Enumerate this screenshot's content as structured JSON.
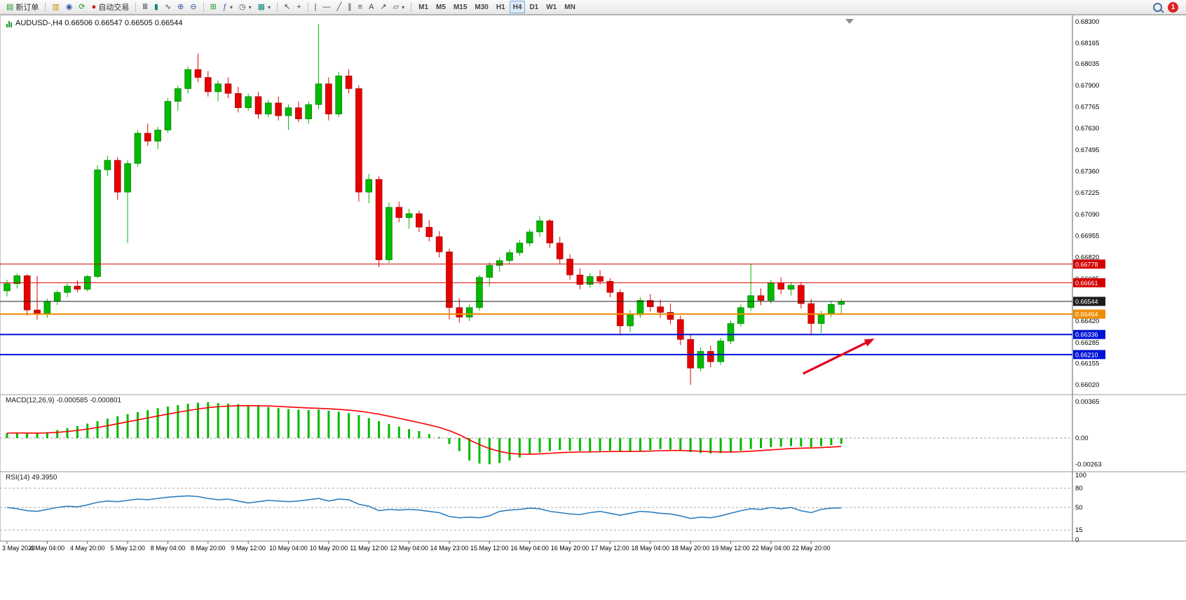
{
  "toolbar": {
    "new_order": "新订单",
    "auto_trading": "自动交易",
    "timeframes": [
      "M1",
      "M5",
      "M15",
      "M30",
      "H1",
      "H4",
      "D1",
      "W1",
      "MN"
    ],
    "active_timeframe": "H4",
    "notification_badge": "1"
  },
  "icons": {
    "new_order": "▤",
    "market_depth": "▥",
    "expert_advisor": "◉",
    "refresh": "⟳",
    "auto_trading": "●",
    "bar_chart": "Ⅲ",
    "candle_chart": "▮",
    "line_chart": "∿",
    "zoom_in": "⊕",
    "zoom_out": "⊖",
    "tile_windows": "⊞",
    "indicators": "ƒ",
    "periods": "◷",
    "templates": "▦",
    "cursor": "↖",
    "crosshair": "+",
    "vline": "|",
    "hline": "―",
    "trendline": "╱",
    "channel": "∥",
    "fibonacci": "≡",
    "text_tool": "A",
    "arrows_tool": "↗",
    "shapes": "▱",
    "dropdown": "▾"
  },
  "chart": {
    "title": "AUDUSD-,H4 0.66506 0.66547 0.66505 0.66544",
    "symbol": "AUDUSD-",
    "timeframe": "H4",
    "open": "0.66506",
    "high": "0.66547",
    "low": "0.66505",
    "close": "0.66544"
  },
  "indicators": {
    "macd_label": "MACD(12,26,9) -0.000585 -0.000801",
    "rsi_label": "RSI(14) 49.3950"
  },
  "chart_data": [
    {
      "type": "candlestick",
      "symbol": "AUDUSD-",
      "timeframe": "H4",
      "up_color": "#00ba00",
      "up_stroke": "#066b06",
      "down_color": "#e60000",
      "down_stroke": "#8e0000",
      "ylim": [
        0.6602,
        0.683
      ],
      "y_axis_labels": [
        "0.68300",
        "0.68165",
        "0.68035",
        "0.67900",
        "0.67765",
        "0.67630",
        "0.67495",
        "0.67360",
        "0.67225",
        "0.67090",
        "0.66955",
        "0.66820",
        "0.66685",
        "0.66550",
        "0.66420",
        "0.66285",
        "0.66155",
        "0.66020"
      ],
      "x_axis_labels": [
        "3 May 2023",
        "4 May 04:00",
        "4 May 20:00",
        "5 May 12:00",
        "8 May 04:00",
        "8 May 20:00",
        "9 May 12:00",
        "10 May 04:00",
        "10 May 20:00",
        "11 May 12:00",
        "12 May 04:00",
        "14 May 23:00",
        "15 May 12:00",
        "16 May 04:00",
        "16 May 20:00",
        "17 May 12:00",
        "18 May 04:00",
        "18 May 20:00",
        "19 May 12:00",
        "22 May 04:00",
        "22 May 20:00"
      ],
      "x_label_step": 4,
      "hlines": [
        {
          "price": 0.66778,
          "label": "0.66778",
          "color": "#d40000",
          "width": 1
        },
        {
          "price": 0.66661,
          "label": "0.66661",
          "color": "#d40000",
          "width": 1
        },
        {
          "price": 0.66544,
          "label": "0.66544",
          "color": "#1c1c1c",
          "width": 1,
          "role": "bid"
        },
        {
          "price": 0.66464,
          "label": "0.66464",
          "color": "#f08c00",
          "width": 2
        },
        {
          "price": 0.66336,
          "label": "0.66336",
          "color": "#0013d6",
          "width": 2
        },
        {
          "price": 0.6621,
          "label": "0.66210",
          "color": "#0013d6",
          "width": 2
        }
      ],
      "arrow": {
        "from_index": 79.2,
        "from_price": 0.6609,
        "to_index": 86.3,
        "to_price": 0.6631,
        "color": "#e1001e"
      },
      "candles": [
        [
          0.6661,
          0.6668,
          0.66575,
          0.66655
        ],
        [
          0.66655,
          0.6672,
          0.66625,
          0.66705
        ],
        [
          0.66705,
          0.66715,
          0.66455,
          0.6649
        ],
        [
          0.6649,
          0.66705,
          0.6643,
          0.66465
        ],
        [
          0.66465,
          0.6656,
          0.6644,
          0.66545
        ],
        [
          0.66545,
          0.66615,
          0.6652,
          0.666
        ],
        [
          0.666,
          0.66655,
          0.6657,
          0.6664
        ],
        [
          0.6664,
          0.66675,
          0.666,
          0.6662
        ],
        [
          0.6662,
          0.6671,
          0.66605,
          0.667
        ],
        [
          0.667,
          0.674,
          0.6669,
          0.6737
        ],
        [
          0.6737,
          0.6746,
          0.6733,
          0.6743
        ],
        [
          0.6743,
          0.6745,
          0.6718,
          0.6723
        ],
        [
          0.6723,
          0.6743,
          0.6691,
          0.6741
        ],
        [
          0.6741,
          0.6762,
          0.6739,
          0.676
        ],
        [
          0.676,
          0.6766,
          0.6752,
          0.6755
        ],
        [
          0.6755,
          0.6764,
          0.675,
          0.6762
        ],
        [
          0.6762,
          0.6782,
          0.676,
          0.678
        ],
        [
          0.678,
          0.679,
          0.6774,
          0.6788
        ],
        [
          0.6788,
          0.6802,
          0.6785,
          0.68
        ],
        [
          0.68,
          0.681,
          0.6792,
          0.6795
        ],
        [
          0.6795,
          0.6799,
          0.6783,
          0.6786
        ],
        [
          0.6786,
          0.6793,
          0.678,
          0.6791
        ],
        [
          0.6791,
          0.6795,
          0.6782,
          0.6785
        ],
        [
          0.6785,
          0.6789,
          0.6773,
          0.6776
        ],
        [
          0.6776,
          0.6785,
          0.6774,
          0.6783
        ],
        [
          0.6783,
          0.6786,
          0.6769,
          0.6772
        ],
        [
          0.6772,
          0.6781,
          0.677,
          0.6779
        ],
        [
          0.6779,
          0.6783,
          0.6768,
          0.6771
        ],
        [
          0.6771,
          0.6778,
          0.6762,
          0.6776
        ],
        [
          0.6776,
          0.678,
          0.6767,
          0.6769
        ],
        [
          0.6769,
          0.678,
          0.6766,
          0.6778
        ],
        [
          0.6778,
          0.68285,
          0.6775,
          0.6791
        ],
        [
          0.6791,
          0.6795,
          0.6768,
          0.6772
        ],
        [
          0.6772,
          0.67985,
          0.677,
          0.6796
        ],
        [
          0.6796,
          0.68,
          0.6785,
          0.6788
        ],
        [
          0.6788,
          0.679,
          0.6717,
          0.6723
        ],
        [
          0.6723,
          0.67345,
          0.6716,
          0.6731
        ],
        [
          0.6731,
          0.6733,
          0.6676,
          0.66805
        ],
        [
          0.66805,
          0.67165,
          0.66785,
          0.67135
        ],
        [
          0.67135,
          0.6717,
          0.6704,
          0.6707
        ],
        [
          0.6707,
          0.67125,
          0.67,
          0.67095
        ],
        [
          0.67095,
          0.67115,
          0.6698,
          0.6701
        ],
        [
          0.6701,
          0.67055,
          0.6692,
          0.6695
        ],
        [
          0.6695,
          0.66985,
          0.6682,
          0.66855
        ],
        [
          0.66855,
          0.66875,
          0.6643,
          0.66505
        ],
        [
          0.66505,
          0.66565,
          0.6641,
          0.66445
        ],
        [
          0.66445,
          0.66525,
          0.6642,
          0.66505
        ],
        [
          0.66505,
          0.6671,
          0.66485,
          0.66695
        ],
        [
          0.66695,
          0.6679,
          0.6664,
          0.6677
        ],
        [
          0.6677,
          0.6682,
          0.6673,
          0.668
        ],
        [
          0.668,
          0.6687,
          0.6678,
          0.6685
        ],
        [
          0.6685,
          0.6693,
          0.6683,
          0.6691
        ],
        [
          0.6691,
          0.67,
          0.6689,
          0.6698
        ],
        [
          0.6698,
          0.6708,
          0.6695,
          0.6705
        ],
        [
          0.6705,
          0.6706,
          0.6688,
          0.6691
        ],
        [
          0.6691,
          0.6695,
          0.6678,
          0.6681
        ],
        [
          0.6681,
          0.6684,
          0.6668,
          0.6671
        ],
        [
          0.6671,
          0.6675,
          0.6662,
          0.6665
        ],
        [
          0.6665,
          0.6672,
          0.6663,
          0.667
        ],
        [
          0.667,
          0.6674,
          0.6665,
          0.6667
        ],
        [
          0.6667,
          0.6669,
          0.6657,
          0.666
        ],
        [
          0.666,
          0.6662,
          0.6633,
          0.6639
        ],
        [
          0.6639,
          0.6649,
          0.6635,
          0.6646
        ],
        [
          0.6646,
          0.6657,
          0.6644,
          0.6655
        ],
        [
          0.6655,
          0.6659,
          0.6648,
          0.6651
        ],
        [
          0.6651,
          0.66555,
          0.6644,
          0.66475
        ],
        [
          0.66475,
          0.6653,
          0.664,
          0.6643
        ],
        [
          0.6643,
          0.66455,
          0.6627,
          0.66305
        ],
        [
          0.66305,
          0.66335,
          0.6602,
          0.66125
        ],
        [
          0.66125,
          0.66255,
          0.66105,
          0.6623
        ],
        [
          0.6623,
          0.66265,
          0.6613,
          0.66165
        ],
        [
          0.66165,
          0.66315,
          0.66145,
          0.66295
        ],
        [
          0.66295,
          0.66425,
          0.66275,
          0.66405
        ],
        [
          0.66405,
          0.66525,
          0.66385,
          0.66505
        ],
        [
          0.66505,
          0.6678,
          0.66485,
          0.6658
        ],
        [
          0.6658,
          0.66625,
          0.6652,
          0.6655
        ],
        [
          0.6655,
          0.6668,
          0.6653,
          0.6666
        ],
        [
          0.6666,
          0.66695,
          0.6659,
          0.6662
        ],
        [
          0.6662,
          0.66665,
          0.6658,
          0.66645
        ],
        [
          0.66645,
          0.66665,
          0.665,
          0.6653
        ],
        [
          0.6653,
          0.6656,
          0.6633,
          0.66405
        ],
        [
          0.66405,
          0.66485,
          0.66345,
          0.66465
        ],
        [
          0.66465,
          0.66545,
          0.66445,
          0.66525
        ],
        [
          0.66525,
          0.6656,
          0.6646,
          0.66544
        ]
      ]
    },
    {
      "type": "bar",
      "name": "MACD(12,26,9)",
      "current_macd": -0.000585,
      "current_signal": -0.000801,
      "bar_color": "#00ba00",
      "signal_color": "#ff0000",
      "y_axis_labels": [
        "0.00365",
        "0.00",
        "-0.00263"
      ],
      "signal_period": 9,
      "values": [
        0.0005,
        0.00055,
        0.0005,
        0.00045,
        0.0006,
        0.0008,
        0.001,
        0.0012,
        0.00145,
        0.0017,
        0.00195,
        0.0022,
        0.0024,
        0.0026,
        0.0028,
        0.003,
        0.00315,
        0.0033,
        0.00345,
        0.00355,
        0.0036,
        0.0035,
        0.00345,
        0.0034,
        0.0033,
        0.0032,
        0.0031,
        0.003,
        0.0029,
        0.00285,
        0.0028,
        0.00285,
        0.00275,
        0.00265,
        0.0025,
        0.0023,
        0.002,
        0.0017,
        0.0014,
        0.00115,
        0.0009,
        0.0007,
        0.0004,
        0.0001,
        -0.0006,
        -0.0013,
        -0.00225,
        -0.00255,
        -0.00262,
        -0.0025,
        -0.00225,
        -0.00195,
        -0.00165,
        -0.00145,
        -0.0013,
        -0.0012,
        -0.00125,
        -0.0013,
        -0.00135,
        -0.0013,
        -0.00125,
        -0.0013,
        -0.00135,
        -0.0013,
        -0.0012,
        -0.0011,
        -0.00115,
        -0.00125,
        -0.0014,
        -0.0015,
        -0.00155,
        -0.0015,
        -0.0014,
        -0.00125,
        -0.0011,
        -0.001,
        -0.0009,
        -0.00085,
        -0.0008,
        -0.00085,
        -0.0009,
        -0.0008,
        -0.0007,
        -0.000585
      ]
    },
    {
      "type": "line",
      "name": "RSI(14)",
      "current": 49.395,
      "line_color": "#2d7fc1",
      "levels": [
        80,
        50,
        15
      ],
      "y_axis_labels": [
        "100",
        "80",
        "50",
        "15",
        "0"
      ],
      "ylim": [
        0,
        100
      ],
      "values": [
        50,
        48,
        45,
        44,
        47,
        50,
        52,
        51,
        54,
        58,
        60,
        59,
        61,
        63,
        62,
        64,
        66,
        67,
        68,
        67,
        64,
        62,
        63,
        60,
        57,
        59,
        61,
        60,
        59,
        60,
        62,
        64,
        60,
        63,
        62,
        55,
        52,
        45,
        47,
        46,
        47,
        46,
        44,
        42,
        36,
        34,
        35,
        34,
        37,
        44,
        46,
        47,
        49,
        48,
        44,
        42,
        40,
        39,
        42,
        44,
        41,
        38,
        41,
        44,
        43,
        41,
        40,
        37,
        33,
        35,
        34,
        37,
        41,
        45,
        48,
        47,
        50,
        48,
        50,
        45,
        42,
        47,
        49,
        49.4
      ]
    }
  ]
}
